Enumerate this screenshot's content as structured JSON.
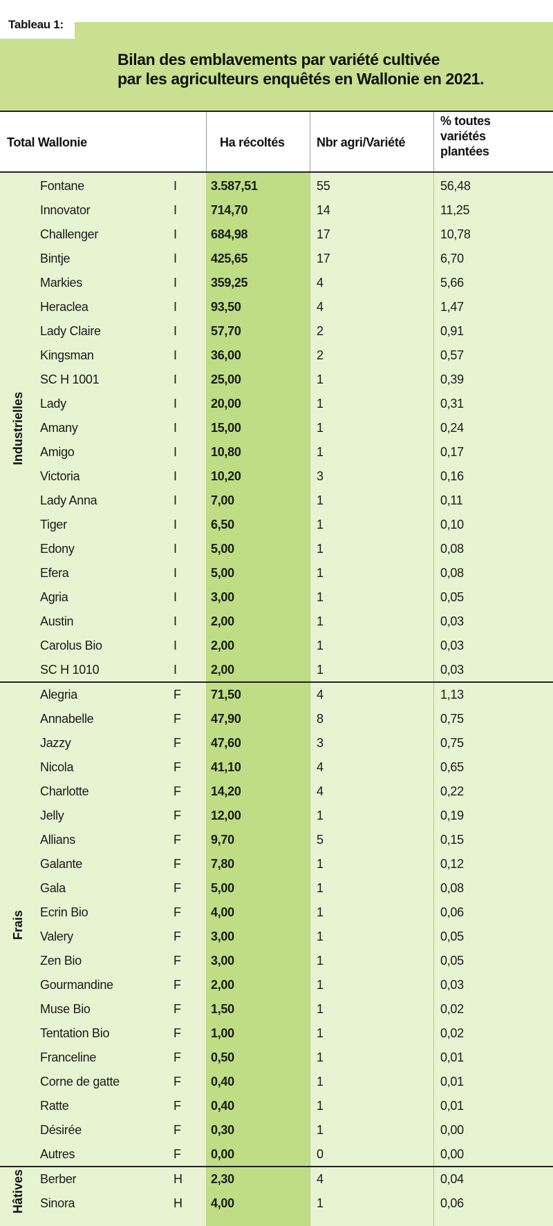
{
  "header": {
    "tag": "Tableau 1:",
    "title_line1": "Bilan des emblavements par variété cultivée",
    "title_line2": "par les agriculteurs enquêtés en Wallonie en 2021."
  },
  "columns": {
    "total": "Total Wallonie",
    "ha": "Ha récoltés",
    "nbr": "Nbr agri/Variété",
    "pct_line1": "% toutes",
    "pct_line2": "variétés",
    "pct_line3": "plantées"
  },
  "groups": [
    {
      "label": "Industrielles",
      "rows": [
        {
          "name": "Fontane",
          "type": "I",
          "ha": "3.587,51",
          "nbr": "55",
          "pct": "56,48"
        },
        {
          "name": "Innovator",
          "type": "I",
          "ha": "714,70",
          "nbr": "14",
          "pct": "11,25"
        },
        {
          "name": "Challenger",
          "type": "I",
          "ha": "684,98",
          "nbr": "17",
          "pct": "10,78"
        },
        {
          "name": "Bintje",
          "type": "I",
          "ha": "425,65",
          "nbr": "17",
          "pct": "6,70"
        },
        {
          "name": "Markies",
          "type": "I",
          "ha": "359,25",
          "nbr": "4",
          "pct": "5,66"
        },
        {
          "name": "Heraclea",
          "type": "I",
          "ha": "93,50",
          "nbr": "4",
          "pct": "1,47"
        },
        {
          "name": "Lady Claire",
          "type": "I",
          "ha": "57,70",
          "nbr": "2",
          "pct": "0,91"
        },
        {
          "name": "Kingsman",
          "type": "I",
          "ha": "36,00",
          "nbr": "2",
          "pct": "0,57"
        },
        {
          "name": "SC H 1001",
          "type": "I",
          "ha": "25,00",
          "nbr": "1",
          "pct": "0,39"
        },
        {
          "name": "Lady",
          "type": "I",
          "ha": "20,00",
          "nbr": "1",
          "pct": "0,31"
        },
        {
          "name": "Amany",
          "type": "I",
          "ha": "15,00",
          "nbr": "1",
          "pct": "0,24"
        },
        {
          "name": "Amigo",
          "type": "I",
          "ha": "10,80",
          "nbr": "1",
          "pct": "0,17"
        },
        {
          "name": "Victoria",
          "type": "I",
          "ha": "10,20",
          "nbr": "3",
          "pct": "0,16"
        },
        {
          "name": "Lady Anna",
          "type": "I",
          "ha": "7,00",
          "nbr": "1",
          "pct": "0,11"
        },
        {
          "name": "Tiger",
          "type": "I",
          "ha": "6,50",
          "nbr": "1",
          "pct": "0,10"
        },
        {
          "name": "Edony",
          "type": "I",
          "ha": "5,00",
          "nbr": "1",
          "pct": "0,08"
        },
        {
          "name": "Efera",
          "type": "I",
          "ha": "5,00",
          "nbr": "1",
          "pct": "0,08"
        },
        {
          "name": "Agria",
          "type": "I",
          "ha": "3,00",
          "nbr": "1",
          "pct": "0,05"
        },
        {
          "name": "Austin",
          "type": "I",
          "ha": "2,00",
          "nbr": "1",
          "pct": "0,03"
        },
        {
          "name": "Carolus Bio",
          "type": "I",
          "ha": "2,00",
          "nbr": "1",
          "pct": "0,03"
        },
        {
          "name": "SC H 1010",
          "type": "I",
          "ha": "2,00",
          "nbr": "1",
          "pct": "0,03"
        }
      ]
    },
    {
      "label": "Frais",
      "rows": [
        {
          "name": "Alegria",
          "type": "F",
          "ha": "71,50",
          "nbr": "4",
          "pct": "1,13"
        },
        {
          "name": "Annabelle",
          "type": "F",
          "ha": "47,90",
          "nbr": "8",
          "pct": "0,75"
        },
        {
          "name": "Jazzy",
          "type": "F",
          "ha": "47,60",
          "nbr": "3",
          "pct": "0,75"
        },
        {
          "name": "Nicola",
          "type": "F",
          "ha": "41,10",
          "nbr": "4",
          "pct": "0,65"
        },
        {
          "name": "Charlotte",
          "type": "F",
          "ha": "14,20",
          "nbr": "4",
          "pct": "0,22"
        },
        {
          "name": "Jelly",
          "type": "F",
          "ha": "12,00",
          "nbr": "1",
          "pct": "0,19"
        },
        {
          "name": "Allians",
          "type": "F",
          "ha": "9,70",
          "nbr": "5",
          "pct": "0,15"
        },
        {
          "name": "Galante",
          "type": "F",
          "ha": "7,80",
          "nbr": "1",
          "pct": "0,12"
        },
        {
          "name": "Gala",
          "type": "F",
          "ha": "5,00",
          "nbr": "1",
          "pct": "0,08"
        },
        {
          "name": "Ecrin Bio",
          "type": "F",
          "ha": "4,00",
          "nbr": "1",
          "pct": "0,06"
        },
        {
          "name": "Valery",
          "type": "F",
          "ha": "3,00",
          "nbr": "1",
          "pct": "0,05"
        },
        {
          "name": "Zen Bio",
          "type": "F",
          "ha": "3,00",
          "nbr": "1",
          "pct": "0,05"
        },
        {
          "name": "Gourmandine",
          "type": "F",
          "ha": "2,00",
          "nbr": "1",
          "pct": "0,03"
        },
        {
          "name": "Muse Bio",
          "type": "F",
          "ha": "1,50",
          "nbr": "1",
          "pct": "0,02"
        },
        {
          "name": "Tentation Bio",
          "type": "F",
          "ha": "1,00",
          "nbr": "1",
          "pct": "0,02"
        },
        {
          "name": "Franceline",
          "type": "F",
          "ha": "0,50",
          "nbr": "1",
          "pct": "0,01"
        },
        {
          "name": "Corne de gatte",
          "type": "F",
          "ha": "0,40",
          "nbr": "1",
          "pct": "0,01"
        },
        {
          "name": "Ratte",
          "type": "F",
          "ha": "0,40",
          "nbr": "1",
          "pct": "0,01"
        },
        {
          "name": "Désirée",
          "type": "F",
          "ha": "0,30",
          "nbr": "1",
          "pct": "0,00"
        },
        {
          "name": "Autres",
          "type": "F",
          "ha": "0,00",
          "nbr": "0",
          "pct": "0,00"
        }
      ]
    },
    {
      "label": "Hâtives",
      "rows": [
        {
          "name": "Berber",
          "type": "H",
          "ha": "2,30",
          "nbr": "4",
          "pct": "0,04"
        },
        {
          "name": "Sinora",
          "type": "H",
          "ha": "4,00",
          "nbr": "1",
          "pct": "0,06"
        }
      ]
    }
  ],
  "colors": {
    "header_bg": "#c8e08f",
    "body_bg": "#e8f3d2",
    "ha_column_bg": "#bfdd85"
  }
}
